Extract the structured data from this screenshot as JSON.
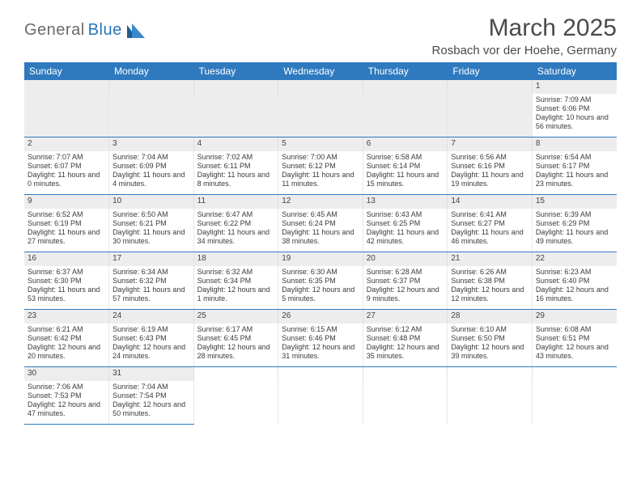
{
  "logo": {
    "text_gray": "General",
    "text_blue": "Blue"
  },
  "title": "March 2025",
  "location": "Rosbach vor der Hoehe, Germany",
  "colors": {
    "header_bg": "#2f7abf",
    "header_text": "#ffffff",
    "daynum_bg": "#ededed",
    "week_divider": "#2f7abf",
    "cell_divider": "#e8e8e8",
    "body_text": "#3a3a3a",
    "title_text": "#4a4a4a",
    "logo_gray": "#6a6a6a",
    "logo_blue": "#2a74bb"
  },
  "fonts": {
    "title_size_pt": 30,
    "location_size_pt": 15,
    "dayhead_size_pt": 12,
    "daynum_size_pt": 10,
    "cell_size_pt": 9
  },
  "day_headers": [
    "Sunday",
    "Monday",
    "Tuesday",
    "Wednesday",
    "Thursday",
    "Friday",
    "Saturday"
  ],
  "weeks": [
    [
      null,
      null,
      null,
      null,
      null,
      null,
      {
        "n": "1",
        "sunrise": "Sunrise: 7:09 AM",
        "sunset": "Sunset: 6:06 PM",
        "daylight": "Daylight: 10 hours and 56 minutes."
      }
    ],
    [
      {
        "n": "2",
        "sunrise": "Sunrise: 7:07 AM",
        "sunset": "Sunset: 6:07 PM",
        "daylight": "Daylight: 11 hours and 0 minutes."
      },
      {
        "n": "3",
        "sunrise": "Sunrise: 7:04 AM",
        "sunset": "Sunset: 6:09 PM",
        "daylight": "Daylight: 11 hours and 4 minutes."
      },
      {
        "n": "4",
        "sunrise": "Sunrise: 7:02 AM",
        "sunset": "Sunset: 6:11 PM",
        "daylight": "Daylight: 11 hours and 8 minutes."
      },
      {
        "n": "5",
        "sunrise": "Sunrise: 7:00 AM",
        "sunset": "Sunset: 6:12 PM",
        "daylight": "Daylight: 11 hours and 11 minutes."
      },
      {
        "n": "6",
        "sunrise": "Sunrise: 6:58 AM",
        "sunset": "Sunset: 6:14 PM",
        "daylight": "Daylight: 11 hours and 15 minutes."
      },
      {
        "n": "7",
        "sunrise": "Sunrise: 6:56 AM",
        "sunset": "Sunset: 6:16 PM",
        "daylight": "Daylight: 11 hours and 19 minutes."
      },
      {
        "n": "8",
        "sunrise": "Sunrise: 6:54 AM",
        "sunset": "Sunset: 6:17 PM",
        "daylight": "Daylight: 11 hours and 23 minutes."
      }
    ],
    [
      {
        "n": "9",
        "sunrise": "Sunrise: 6:52 AM",
        "sunset": "Sunset: 6:19 PM",
        "daylight": "Daylight: 11 hours and 27 minutes."
      },
      {
        "n": "10",
        "sunrise": "Sunrise: 6:50 AM",
        "sunset": "Sunset: 6:21 PM",
        "daylight": "Daylight: 11 hours and 30 minutes."
      },
      {
        "n": "11",
        "sunrise": "Sunrise: 6:47 AM",
        "sunset": "Sunset: 6:22 PM",
        "daylight": "Daylight: 11 hours and 34 minutes."
      },
      {
        "n": "12",
        "sunrise": "Sunrise: 6:45 AM",
        "sunset": "Sunset: 6:24 PM",
        "daylight": "Daylight: 11 hours and 38 minutes."
      },
      {
        "n": "13",
        "sunrise": "Sunrise: 6:43 AM",
        "sunset": "Sunset: 6:25 PM",
        "daylight": "Daylight: 11 hours and 42 minutes."
      },
      {
        "n": "14",
        "sunrise": "Sunrise: 6:41 AM",
        "sunset": "Sunset: 6:27 PM",
        "daylight": "Daylight: 11 hours and 46 minutes."
      },
      {
        "n": "15",
        "sunrise": "Sunrise: 6:39 AM",
        "sunset": "Sunset: 6:29 PM",
        "daylight": "Daylight: 11 hours and 49 minutes."
      }
    ],
    [
      {
        "n": "16",
        "sunrise": "Sunrise: 6:37 AM",
        "sunset": "Sunset: 6:30 PM",
        "daylight": "Daylight: 11 hours and 53 minutes."
      },
      {
        "n": "17",
        "sunrise": "Sunrise: 6:34 AM",
        "sunset": "Sunset: 6:32 PM",
        "daylight": "Daylight: 11 hours and 57 minutes."
      },
      {
        "n": "18",
        "sunrise": "Sunrise: 6:32 AM",
        "sunset": "Sunset: 6:34 PM",
        "daylight": "Daylight: 12 hours and 1 minute."
      },
      {
        "n": "19",
        "sunrise": "Sunrise: 6:30 AM",
        "sunset": "Sunset: 6:35 PM",
        "daylight": "Daylight: 12 hours and 5 minutes."
      },
      {
        "n": "20",
        "sunrise": "Sunrise: 6:28 AM",
        "sunset": "Sunset: 6:37 PM",
        "daylight": "Daylight: 12 hours and 9 minutes."
      },
      {
        "n": "21",
        "sunrise": "Sunrise: 6:26 AM",
        "sunset": "Sunset: 6:38 PM",
        "daylight": "Daylight: 12 hours and 12 minutes."
      },
      {
        "n": "22",
        "sunrise": "Sunrise: 6:23 AM",
        "sunset": "Sunset: 6:40 PM",
        "daylight": "Daylight: 12 hours and 16 minutes."
      }
    ],
    [
      {
        "n": "23",
        "sunrise": "Sunrise: 6:21 AM",
        "sunset": "Sunset: 6:42 PM",
        "daylight": "Daylight: 12 hours and 20 minutes."
      },
      {
        "n": "24",
        "sunrise": "Sunrise: 6:19 AM",
        "sunset": "Sunset: 6:43 PM",
        "daylight": "Daylight: 12 hours and 24 minutes."
      },
      {
        "n": "25",
        "sunrise": "Sunrise: 6:17 AM",
        "sunset": "Sunset: 6:45 PM",
        "daylight": "Daylight: 12 hours and 28 minutes."
      },
      {
        "n": "26",
        "sunrise": "Sunrise: 6:15 AM",
        "sunset": "Sunset: 6:46 PM",
        "daylight": "Daylight: 12 hours and 31 minutes."
      },
      {
        "n": "27",
        "sunrise": "Sunrise: 6:12 AM",
        "sunset": "Sunset: 6:48 PM",
        "daylight": "Daylight: 12 hours and 35 minutes."
      },
      {
        "n": "28",
        "sunrise": "Sunrise: 6:10 AM",
        "sunset": "Sunset: 6:50 PM",
        "daylight": "Daylight: 12 hours and 39 minutes."
      },
      {
        "n": "29",
        "sunrise": "Sunrise: 6:08 AM",
        "sunset": "Sunset: 6:51 PM",
        "daylight": "Daylight: 12 hours and 43 minutes."
      }
    ],
    [
      {
        "n": "30",
        "sunrise": "Sunrise: 7:06 AM",
        "sunset": "Sunset: 7:53 PM",
        "daylight": "Daylight: 12 hours and 47 minutes."
      },
      {
        "n": "31",
        "sunrise": "Sunrise: 7:04 AM",
        "sunset": "Sunset: 7:54 PM",
        "daylight": "Daylight: 12 hours and 50 minutes."
      },
      null,
      null,
      null,
      null,
      null
    ]
  ]
}
